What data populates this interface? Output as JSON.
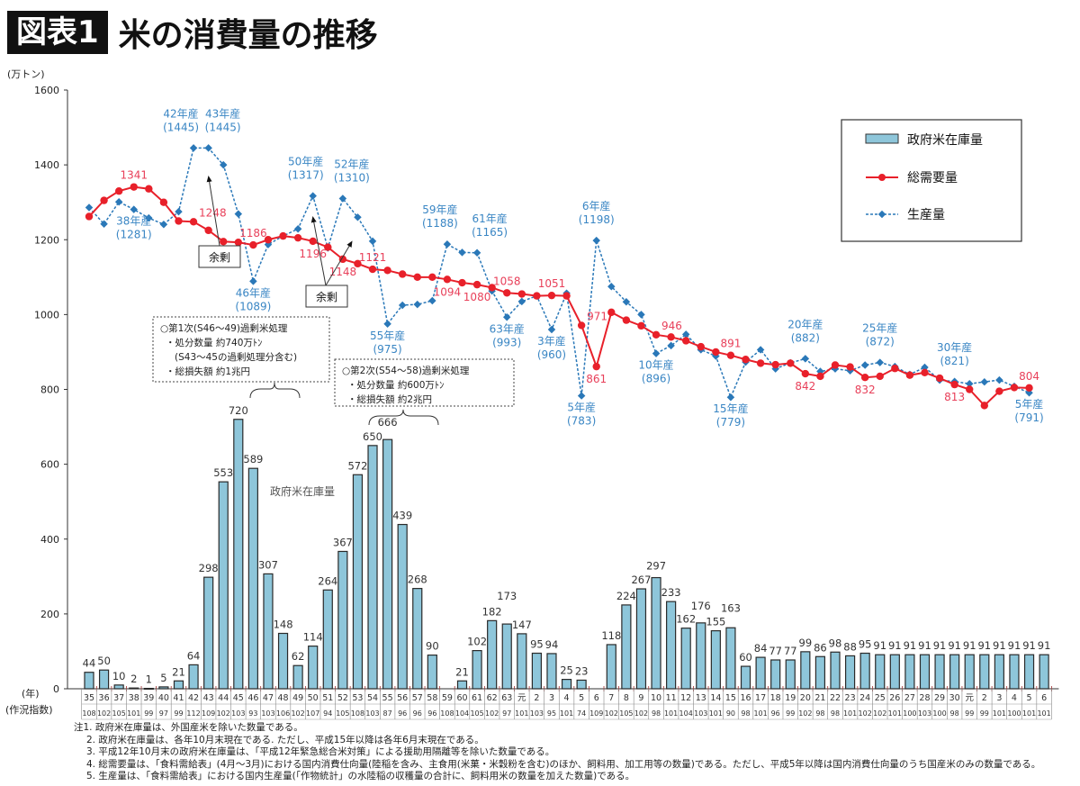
{
  "header": {
    "badge": "図表1",
    "title": "米の消費量の推移"
  },
  "notes": [
    "注1. 政府米在庫量は、外国産米を除いた数量である。",
    "2. 政府米在庫量は、各年10月末現在である. ただし、平成15年以降は各年6月末現在である。",
    "3. 平成12年10月末の政府米在庫量は、「平成12年緊急総合米対策」による援助用隔離等を除いた数量である。",
    "4. 総需要量は、「食料需給表」(4月～3月)における国内消費仕向量(陸稲を含み、主食用(米菓・米穀粉を含む)のほか、飼料用、加工用等の数量)である。ただし、平成5年以降は国内消費仕向量のうち国産米のみの数量である。",
    "5. 生産量は、「食料需給表」における国内生産量(「作物統計」の水陸稲の収穫量の合計に、飼料用米の数量を加えた数量)である。"
  ],
  "chart_data": {
    "type": "bar+line",
    "ylabel": "(万トン)",
    "xlabel": "(年)",
    "index_row_label": "(作況指数)",
    "ylim": [
      0,
      1600
    ],
    "yticks": [
      0,
      200,
      400,
      600,
      800,
      1000,
      1200,
      1400,
      1600
    ],
    "grid": false,
    "legend_placement": "top-right",
    "categories": [
      "35",
      "36",
      "37",
      "38",
      "39",
      "40",
      "41",
      "42",
      "43",
      "44",
      "45",
      "46",
      "47",
      "48",
      "49",
      "50",
      "51",
      "52",
      "53",
      "54",
      "55",
      "56",
      "57",
      "58",
      "59",
      "60",
      "61",
      "62",
      "63",
      "元",
      "2",
      "3",
      "4",
      "5",
      "6",
      "7",
      "8",
      "9",
      "10",
      "11",
      "12",
      "13",
      "14",
      "15",
      "16",
      "17",
      "18",
      "19",
      "20",
      "21",
      "22",
      "23",
      "24",
      "25",
      "26",
      "27",
      "28",
      "29",
      "30",
      "元",
      "2",
      "3",
      "4",
      "5",
      "6"
    ],
    "crop_index": [
      108,
      102,
      105,
      101,
      99,
      97,
      99,
      112,
      109,
      102,
      103,
      93,
      103,
      106,
      102,
      107,
      94,
      105,
      108,
      103,
      87,
      96,
      96,
      96,
      108,
      104,
      105,
      102,
      97,
      101,
      103,
      95,
      101,
      74,
      109,
      102,
      105,
      102,
      98,
      101,
      104,
      103,
      101,
      90,
      98,
      101,
      96,
      99,
      102,
      98,
      98,
      101,
      102,
      102,
      101,
      100,
      103,
      100,
      98,
      99,
      99,
      101,
      100,
      101,
      101
    ],
    "series": [
      {
        "name": "政府米在庫量",
        "type": "bar",
        "color": "#8ec6da",
        "values": [
          44,
          50,
          10,
          2,
          1,
          5,
          21,
          64,
          298,
          553,
          720,
          589,
          307,
          148,
          62,
          114,
          264,
          367,
          572,
          650,
          666,
          439,
          268,
          90,
          null,
          21,
          102,
          182,
          173,
          147,
          95,
          94,
          25,
          23,
          null,
          118,
          224,
          267,
          297,
          233,
          162,
          176,
          155,
          163,
          60,
          84,
          77,
          77,
          99,
          86,
          98,
          88,
          95,
          91,
          91,
          91,
          91,
          91,
          91,
          91,
          91,
          91,
          91,
          91,
          91
        ]
      },
      {
        "name": "総需要量",
        "type": "line",
        "color": "#e8202a",
        "values": [
          1262,
          1305,
          1330,
          1341,
          1336,
          1300,
          1250,
          1248,
          1225,
          1195,
          1193,
          1186,
          1200,
          1210,
          1205,
          1196,
          1180,
          1148,
          1136,
          1121,
          1118,
          1108,
          1100,
          1100,
          1094,
          1085,
          1080,
          1072,
          1058,
          1055,
          1050,
          1051,
          1050,
          971,
          861,
          1006,
          985,
          970,
          946,
          940,
          930,
          914,
          900,
          891,
          880,
          870,
          866,
          870,
          842,
          835,
          865,
          860,
          832,
          835,
          856,
          838,
          845,
          830,
          813,
          800,
          757,
          795,
          805,
          804,
          null
        ]
      },
      {
        "name": "生産量",
        "type": "line",
        "style": "dashed",
        "color": "#2a78b8",
        "values": [
          1286,
          1242,
          1301,
          1281,
          1258,
          1241,
          1275,
          1445,
          1445,
          1400,
          1269,
          1089,
          1187,
          1210,
          1229,
          1317,
          1178,
          1310,
          1260,
          1196,
          975,
          1025,
          1027,
          1037,
          1188,
          1166,
          1165,
          1063,
          993,
          1035,
          1050,
          960,
          1057,
          783,
          1198,
          1075,
          1034,
          1000,
          896,
          917,
          947,
          906,
          889,
          779,
          873,
          906,
          855,
          871,
          882,
          848,
          855,
          850,
          865,
          872,
          861,
          840,
          859,
          825,
          821,
          815,
          820,
          825,
          808,
          791,
          null
        ]
      }
    ],
    "annotations": [
      {
        "series": 2,
        "index": 7,
        "label": "42年産",
        "value": "(1445)",
        "position": "above"
      },
      {
        "series": 2,
        "index": 8,
        "label": "43年産",
        "value": "(1445)",
        "position": "above"
      },
      {
        "series": 2,
        "index": 3,
        "label": "38年産",
        "value": "(1281)",
        "position": "below"
      },
      {
        "series": 2,
        "index": 11,
        "label": "46年産",
        "value": "(1089)",
        "position": "below"
      },
      {
        "series": 2,
        "index": 15,
        "label": "50年産",
        "value": "(1317)",
        "position": "above"
      },
      {
        "series": 2,
        "index": 17,
        "label": "52年産",
        "value": "(1310)",
        "position": "above"
      },
      {
        "series": 2,
        "index": 20,
        "label": "55年産",
        "value": "(975)",
        "position": "below"
      },
      {
        "series": 2,
        "index": 24,
        "label": "59年産",
        "value": "(1188)",
        "position": "above"
      },
      {
        "series": 2,
        "index": 26,
        "label": "61年産",
        "value": "(1165)",
        "position": "above"
      },
      {
        "series": 2,
        "index": 28,
        "label": "63年産",
        "value": "(993)",
        "position": "below"
      },
      {
        "series": 2,
        "index": 31,
        "label": "3年産",
        "value": "(960)",
        "position": "below"
      },
      {
        "series": 2,
        "index": 33,
        "label": "5年産",
        "value": "(783)",
        "position": "below"
      },
      {
        "series": 2,
        "index": 34,
        "label": "6年産",
        "value": "(1198)",
        "position": "above"
      },
      {
        "series": 2,
        "index": 38,
        "label": "10年産",
        "value": "(896)",
        "position": "below"
      },
      {
        "series": 2,
        "index": 43,
        "label": "15年産",
        "value": "(779)",
        "position": "below"
      },
      {
        "series": 2,
        "index": 48,
        "label": "20年産",
        "value": "(882)",
        "position": "above"
      },
      {
        "series": 2,
        "index": 53,
        "label": "25年産",
        "value": "(872)",
        "position": "above"
      },
      {
        "series": 2,
        "index": 58,
        "label": "30年産",
        "value": "(821)",
        "position": "above"
      },
      {
        "series": 2,
        "index": 63,
        "label": "5年産",
        "value": "(791)",
        "position": "below"
      },
      {
        "series": 1,
        "index": 3,
        "value": "1341",
        "position": "above"
      },
      {
        "series": 1,
        "index": 7,
        "value": "1248",
        "position": "right"
      },
      {
        "series": 1,
        "index": 11,
        "value": "1186",
        "position": "above"
      },
      {
        "series": 1,
        "index": 15,
        "value": "1196",
        "position": "below"
      },
      {
        "series": 1,
        "index": 17,
        "value": "1148",
        "position": "below"
      },
      {
        "series": 1,
        "index": 19,
        "value": "1121",
        "position": "above"
      },
      {
        "series": 1,
        "index": 24,
        "value": "1094",
        "position": "below"
      },
      {
        "series": 1,
        "index": 26,
        "value": "1080",
        "position": "below"
      },
      {
        "series": 1,
        "index": 28,
        "value": "1058",
        "position": "above"
      },
      {
        "series": 1,
        "index": 31,
        "value": "1051",
        "position": "above"
      },
      {
        "series": 1,
        "index": 33,
        "value": "971",
        "position": "right"
      },
      {
        "series": 1,
        "index": 34,
        "value": "861",
        "position": "below"
      },
      {
        "series": 1,
        "index": 38,
        "value": "946",
        "position": "right"
      },
      {
        "series": 1,
        "index": 43,
        "value": "891",
        "position": "above"
      },
      {
        "series": 1,
        "index": 48,
        "value": "842",
        "position": "below"
      },
      {
        "series": 1,
        "index": 52,
        "value": "832",
        "position": "below"
      },
      {
        "series": 1,
        "index": 58,
        "value": "813",
        "position": "below"
      },
      {
        "series": 1,
        "index": 63,
        "value": "804",
        "position": "above"
      }
    ],
    "surplus_label": "余剰",
    "stock_inline_label": "政府米在庫量",
    "disposal_1": [
      "○第1次(S46～49)過剰米処理",
      "・処分数量 約740万ﾄﾝ",
      "(S43～45の過剰処理分含む)",
      "・総損失額 約1兆円"
    ],
    "disposal_2": [
      "○第2次(S54～58)過剰米処理",
      "・処分数量 約600万ﾄﾝ",
      "・総損失額 約2兆円"
    ]
  }
}
